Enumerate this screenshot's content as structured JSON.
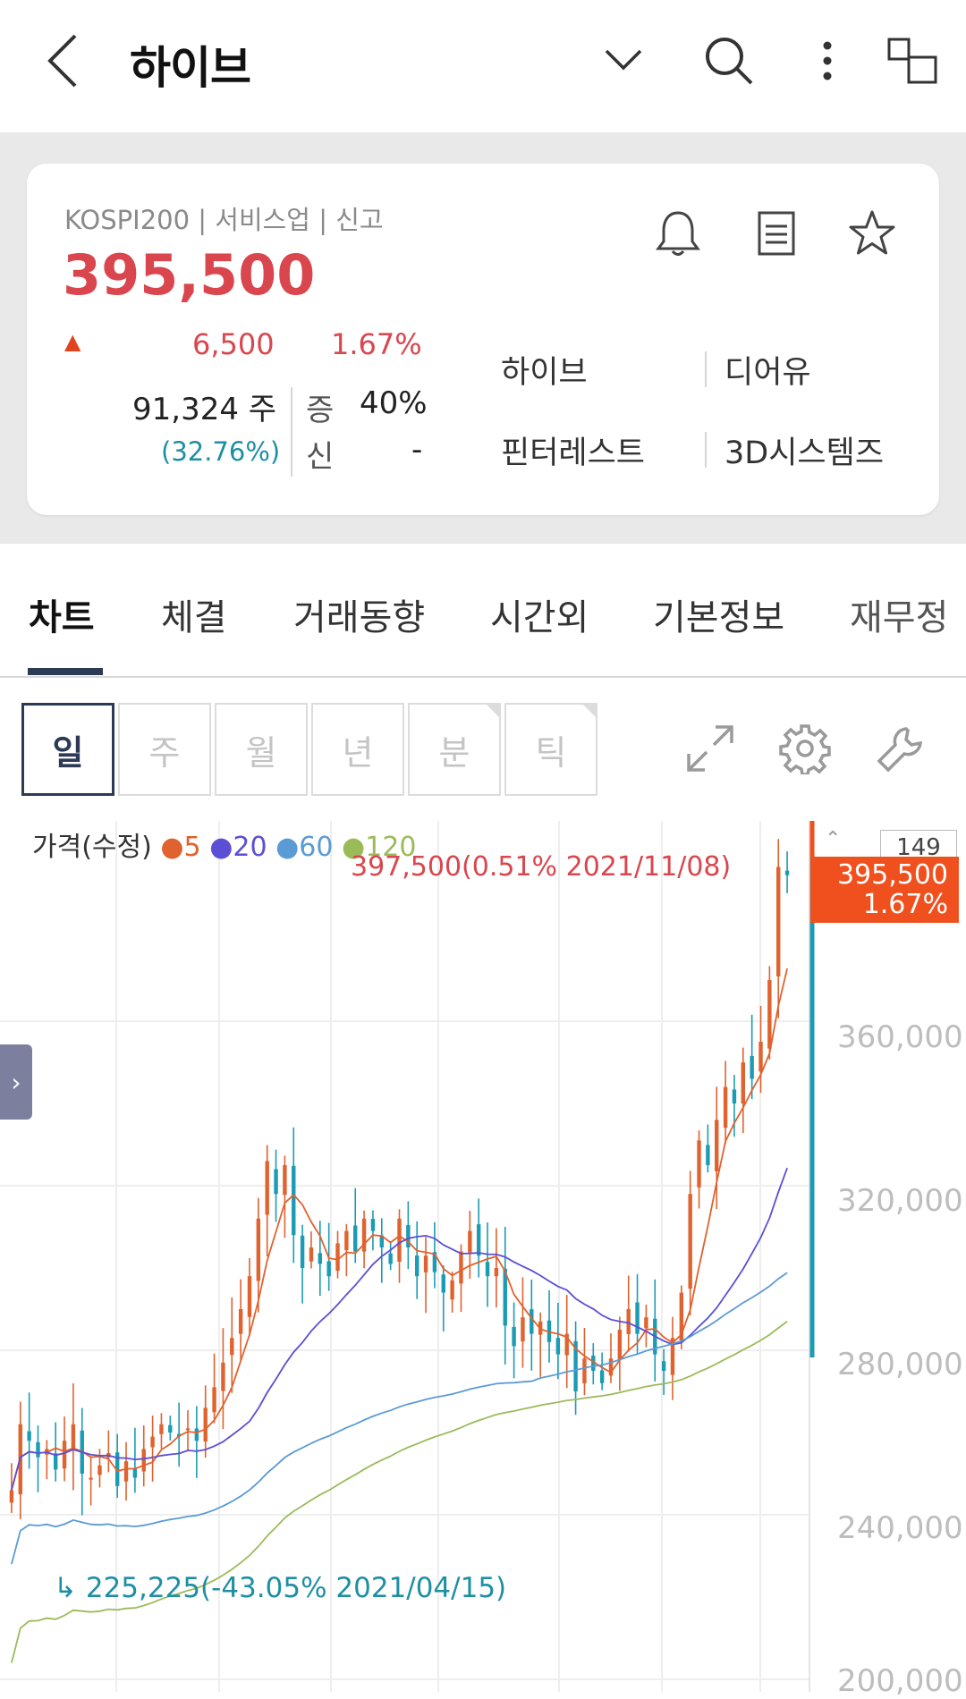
{
  "header": {
    "title": "하이브",
    "icons": [
      "back-icon",
      "chevron-down-icon",
      "search-icon",
      "more-vertical-icon",
      "multi-window-icon"
    ]
  },
  "stock": {
    "meta": "KOSPI200 | 서비스업 | 신고",
    "price": "395,500",
    "change_arrow": "▲",
    "change": "6,500",
    "change_rate": "1.67%",
    "volume": "91,324 주",
    "volume_ratio": "(32.76%)",
    "margin_label": "증",
    "margin_value": "40%",
    "credit_label": "신",
    "credit_value": "-",
    "related": [
      "하이브",
      "디어유",
      "핀터레스트",
      "3D시스템즈"
    ],
    "colors": {
      "up": "#d9464e",
      "teal": "#1e8fa3"
    }
  },
  "tabs": [
    "차트",
    "체결",
    "거래동향",
    "시간외",
    "기본정보",
    "재무정"
  ],
  "active_tab": "차트",
  "periods": [
    "일",
    "주",
    "월",
    "년",
    "분",
    "틱"
  ],
  "active_period": "일",
  "chart_legend": {
    "label": "가격(수정)",
    "items": [
      {
        "name": "5",
        "color": "#e0622e"
      },
      {
        "name": "20",
        "color": "#5b4fd6"
      },
      {
        "name": "60",
        "color": "#5b9bd5"
      },
      {
        "name": "120",
        "color": "#9bbb59"
      }
    ]
  },
  "chart_data": {
    "type": "candlestick",
    "y_ticks": [
      360000,
      320000,
      280000,
      240000,
      200000
    ],
    "y_tick_labels": [
      "360,000",
      "320,000",
      "280,000",
      "240,000",
      "200,000"
    ],
    "ylim": [
      200000,
      400000
    ],
    "high_annotation": "397,500(0.51% 2021/11/08)",
    "low_annotation": "225,225(-43.05% 2021/04/15)",
    "current_price": "395,500",
    "current_rate": "1.67%",
    "scroll_index": "149",
    "closes": [
      246000,
      262000,
      258000,
      254000,
      256000,
      251000,
      258000,
      262000,
      250000,
      249000,
      252000,
      255000,
      247000,
      253000,
      249000,
      256000,
      259000,
      262000,
      260000,
      259000,
      261000,
      258000,
      266000,
      271000,
      277000,
      283000,
      290000,
      298000,
      312000,
      326000,
      318000,
      325000,
      308000,
      300000,
      305000,
      301000,
      298000,
      306000,
      309000,
      304000,
      312000,
      309000,
      305000,
      301000,
      312000,
      305000,
      298000,
      303000,
      299000,
      294000,
      297000,
      304000,
      309000,
      303000,
      298000,
      300000,
      286000,
      281000,
      288000,
      284000,
      287000,
      282000,
      279000,
      284000,
      270000,
      278000,
      275000,
      272000,
      278000,
      285000,
      290000,
      284000,
      288000,
      279000,
      275000,
      283000,
      294000,
      318000,
      331000,
      325000,
      336000,
      344000,
      340000,
      350000,
      346000,
      355000,
      370000,
      397500,
      395500
    ],
    "ma5_end": 364000,
    "ma20_end": 331000,
    "ma60_end": 300000,
    "ma120_end": 296000
  },
  "side_tab": "chevron-right-icon"
}
